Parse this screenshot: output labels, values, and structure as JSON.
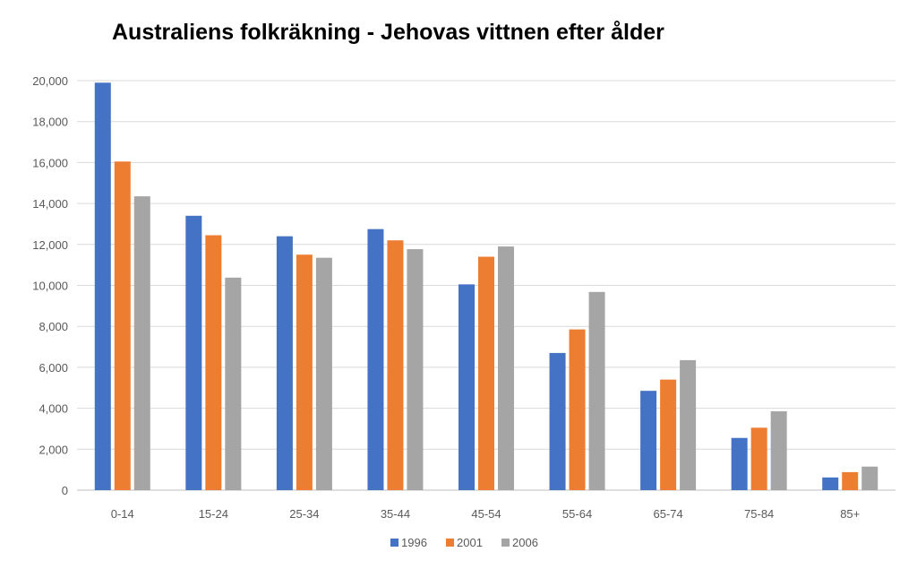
{
  "chart_data": {
    "type": "bar",
    "title": "Australiens folkräkning - Jehovas vittnen efter ålder",
    "xlabel": "",
    "ylabel": "",
    "ylim": [
      0,
      20000
    ],
    "yticks": [
      0,
      2000,
      4000,
      6000,
      8000,
      10000,
      12000,
      14000,
      16000,
      18000,
      20000
    ],
    "ytick_labels": [
      "0",
      "2,000",
      "4,000",
      "6,000",
      "8,000",
      "10,000",
      "12,000",
      "14,000",
      "16,000",
      "18,000",
      "20,000"
    ],
    "grid": true,
    "legend_position": "bottom",
    "categories": [
      "0-14",
      "15-24",
      "25-34",
      "35-44",
      "45-54",
      "55-64",
      "65-74",
      "75-84",
      "85+"
    ],
    "series": [
      {
        "name": "1996",
        "color": "#4472C4",
        "values": [
          19900,
          13400,
          12400,
          12750,
          10050,
          6700,
          4850,
          2550,
          620
        ]
      },
      {
        "name": "2001",
        "color": "#ED7D31",
        "values": [
          16050,
          12450,
          11500,
          12200,
          11400,
          7850,
          5400,
          3050,
          880
        ]
      },
      {
        "name": "2006",
        "color": "#A5A5A5",
        "values": [
          14350,
          10380,
          11350,
          11770,
          11900,
          9680,
          6350,
          3850,
          1150
        ]
      }
    ]
  }
}
